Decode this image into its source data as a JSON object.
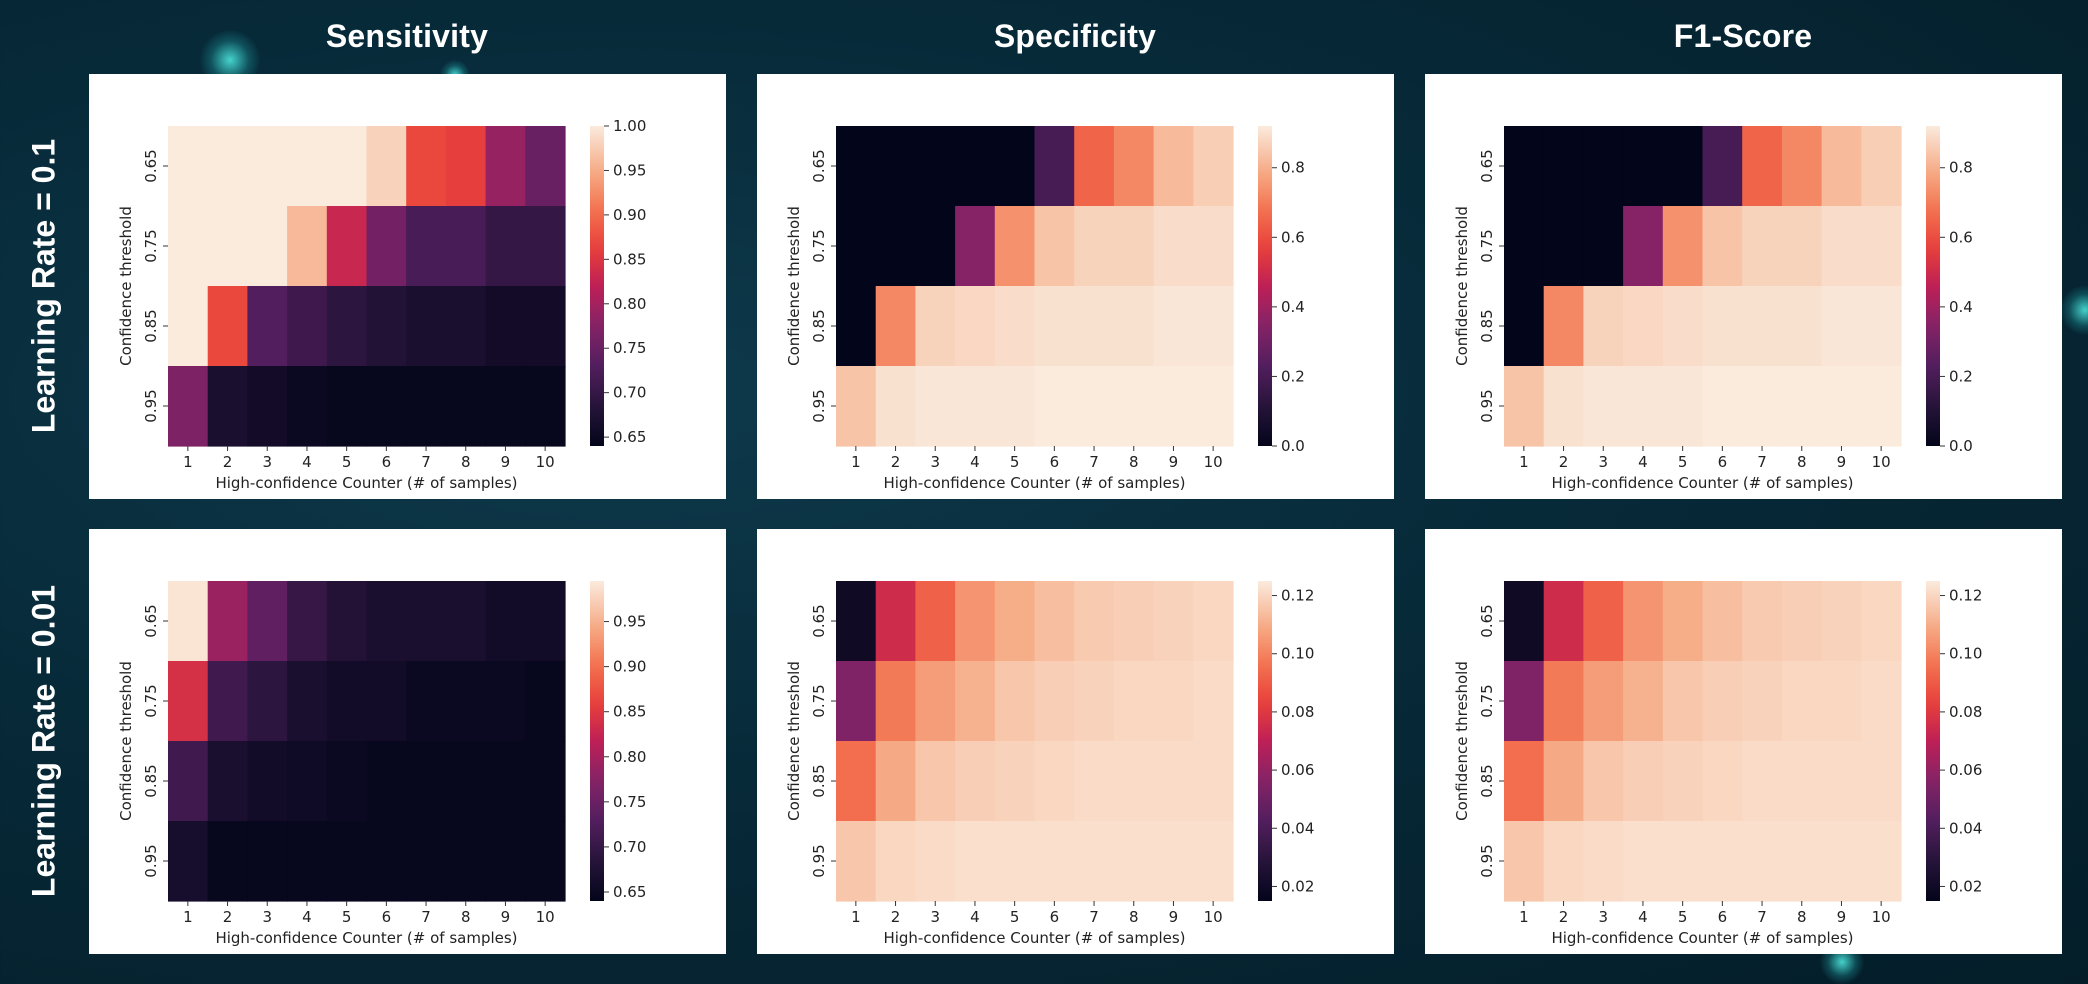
{
  "column_titles": [
    "Sensitivity",
    "Specificity",
    "F1-Score"
  ],
  "row_titles": [
    "Learning Rate = 0.1",
    "Learning Rate = 0.01"
  ],
  "chart_data": [
    {
      "type": "heatmap",
      "title": "Sensitivity",
      "row_title": "Learning Rate = 0.1",
      "xlabel": "High-confidence Counter (# of samples)",
      "ylabel": "Confidence threshold",
      "x": [
        "1",
        "2",
        "3",
        "4",
        "5",
        "6",
        "7",
        "8",
        "9",
        "10"
      ],
      "y": [
        "0.65",
        "0.75",
        "0.85",
        "0.95"
      ],
      "zlim": [
        0.64,
        1.0
      ],
      "colorbar_ticks": [
        "0.65",
        "0.70",
        "0.75",
        "0.80",
        "0.85",
        "0.90",
        "0.95",
        "1.00"
      ],
      "values": [
        [
          1.0,
          1.0,
          1.0,
          1.0,
          1.0,
          0.98,
          0.87,
          0.86,
          0.79,
          0.75
        ],
        [
          1.0,
          1.0,
          1.0,
          0.96,
          0.83,
          0.76,
          0.72,
          0.72,
          0.7,
          0.7
        ],
        [
          1.0,
          0.87,
          0.73,
          0.71,
          0.69,
          0.68,
          0.67,
          0.67,
          0.66,
          0.66
        ],
        [
          0.77,
          0.67,
          0.66,
          0.65,
          0.645,
          0.645,
          0.645,
          0.645,
          0.645,
          0.645
        ]
      ]
    },
    {
      "type": "heatmap",
      "title": "Specificity",
      "row_title": "Learning Rate = 0.1",
      "xlabel": "High-confidence Counter (# of samples)",
      "ylabel": "Confidence threshold",
      "x": [
        "1",
        "2",
        "3",
        "4",
        "5",
        "6",
        "7",
        "8",
        "9",
        "10"
      ],
      "y": [
        "0.65",
        "0.75",
        "0.85",
        "0.95"
      ],
      "zlim": [
        0.0,
        0.92
      ],
      "colorbar_ticks": [
        "0.0",
        "0.2",
        "0.4",
        "0.6",
        "0.8"
      ],
      "values": [
        [
          0.0,
          0.0,
          0.0,
          0.0,
          0.0,
          0.2,
          0.65,
          0.72,
          0.82,
          0.86
        ],
        [
          0.0,
          0.0,
          0.0,
          0.35,
          0.74,
          0.84,
          0.87,
          0.87,
          0.89,
          0.89
        ],
        [
          0.0,
          0.72,
          0.87,
          0.88,
          0.89,
          0.9,
          0.9,
          0.9,
          0.91,
          0.91
        ],
        [
          0.84,
          0.9,
          0.91,
          0.91,
          0.91,
          0.92,
          0.92,
          0.92,
          0.92,
          0.92
        ]
      ]
    },
    {
      "type": "heatmap",
      "title": "F1-Score",
      "row_title": "Learning Rate = 0.1",
      "xlabel": "High-confidence Counter (# of samples)",
      "ylabel": "Confidence threshold",
      "x": [
        "1",
        "2",
        "3",
        "4",
        "5",
        "6",
        "7",
        "8",
        "9",
        "10"
      ],
      "y": [
        "0.65",
        "0.75",
        "0.85",
        "0.95"
      ],
      "zlim": [
        0.0,
        0.92
      ],
      "colorbar_ticks": [
        "0.0",
        "0.2",
        "0.4",
        "0.6",
        "0.8"
      ],
      "values": [
        [
          0.0,
          0.0,
          0.0,
          0.0,
          0.0,
          0.2,
          0.65,
          0.72,
          0.82,
          0.86
        ],
        [
          0.0,
          0.0,
          0.0,
          0.35,
          0.74,
          0.84,
          0.87,
          0.87,
          0.89,
          0.89
        ],
        [
          0.0,
          0.72,
          0.87,
          0.88,
          0.89,
          0.9,
          0.9,
          0.9,
          0.91,
          0.91
        ],
        [
          0.84,
          0.9,
          0.91,
          0.91,
          0.91,
          0.92,
          0.92,
          0.92,
          0.92,
          0.92
        ]
      ]
    },
    {
      "type": "heatmap",
      "title": "Sensitivity",
      "row_title": "Learning Rate = 0.01",
      "xlabel": "High-confidence Counter (# of samples)",
      "ylabel": "Confidence threshold",
      "x": [
        "1",
        "2",
        "3",
        "4",
        "5",
        "6",
        "7",
        "8",
        "9",
        "10"
      ],
      "y": [
        "0.65",
        "0.75",
        "0.85",
        "0.95"
      ],
      "zlim": [
        0.64,
        0.995
      ],
      "colorbar_ticks": [
        "0.65",
        "0.70",
        "0.75",
        "0.80",
        "0.85",
        "0.90",
        "0.95"
      ],
      "values": [
        [
          0.99,
          0.79,
          0.74,
          0.7,
          0.68,
          0.67,
          0.67,
          0.67,
          0.66,
          0.66
        ],
        [
          0.84,
          0.71,
          0.69,
          0.67,
          0.66,
          0.66,
          0.65,
          0.65,
          0.65,
          0.645
        ],
        [
          0.71,
          0.67,
          0.66,
          0.655,
          0.65,
          0.645,
          0.645,
          0.645,
          0.645,
          0.645
        ],
        [
          0.665,
          0.645,
          0.645,
          0.645,
          0.645,
          0.645,
          0.645,
          0.645,
          0.645,
          0.645
        ]
      ]
    },
    {
      "type": "heatmap",
      "title": "Specificity",
      "row_title": "Learning Rate = 0.01",
      "xlabel": "High-confidence Counter (# of samples)",
      "ylabel": "Confidence threshold",
      "x": [
        "1",
        "2",
        "3",
        "4",
        "5",
        "6",
        "7",
        "8",
        "9",
        "10"
      ],
      "y": [
        "0.65",
        "0.75",
        "0.85",
        "0.95"
      ],
      "zlim": [
        0.015,
        0.125
      ],
      "colorbar_ticks": [
        "0.02",
        "0.04",
        "0.06",
        "0.08",
        "0.10",
        "0.12"
      ],
      "values": [
        [
          0.02,
          0.075,
          0.092,
          0.104,
          0.11,
          0.114,
          0.117,
          0.118,
          0.119,
          0.12
        ],
        [
          0.055,
          0.098,
          0.106,
          0.111,
          0.116,
          0.118,
          0.119,
          0.12,
          0.12,
          0.121
        ],
        [
          0.095,
          0.109,
          0.116,
          0.118,
          0.119,
          0.12,
          0.121,
          0.121,
          0.121,
          0.121
        ],
        [
          0.116,
          0.12,
          0.121,
          0.122,
          0.122,
          0.122,
          0.122,
          0.122,
          0.122,
          0.122
        ]
      ]
    },
    {
      "type": "heatmap",
      "title": "F1-Score",
      "row_title": "Learning Rate = 0.01",
      "xlabel": "High-confidence Counter (# of samples)",
      "ylabel": "Confidence threshold",
      "x": [
        "1",
        "2",
        "3",
        "4",
        "5",
        "6",
        "7",
        "8",
        "9",
        "10"
      ],
      "y": [
        "0.65",
        "0.75",
        "0.85",
        "0.95"
      ],
      "zlim": [
        0.015,
        0.125
      ],
      "colorbar_ticks": [
        "0.02",
        "0.04",
        "0.06",
        "0.08",
        "0.10",
        "0.12"
      ],
      "values": [
        [
          0.02,
          0.075,
          0.092,
          0.104,
          0.11,
          0.114,
          0.117,
          0.118,
          0.119,
          0.12
        ],
        [
          0.055,
          0.098,
          0.106,
          0.111,
          0.116,
          0.118,
          0.119,
          0.12,
          0.12,
          0.121
        ],
        [
          0.095,
          0.109,
          0.116,
          0.118,
          0.119,
          0.12,
          0.121,
          0.121,
          0.121,
          0.121
        ],
        [
          0.116,
          0.12,
          0.121,
          0.122,
          0.122,
          0.122,
          0.122,
          0.122,
          0.122,
          0.122
        ]
      ]
    }
  ]
}
